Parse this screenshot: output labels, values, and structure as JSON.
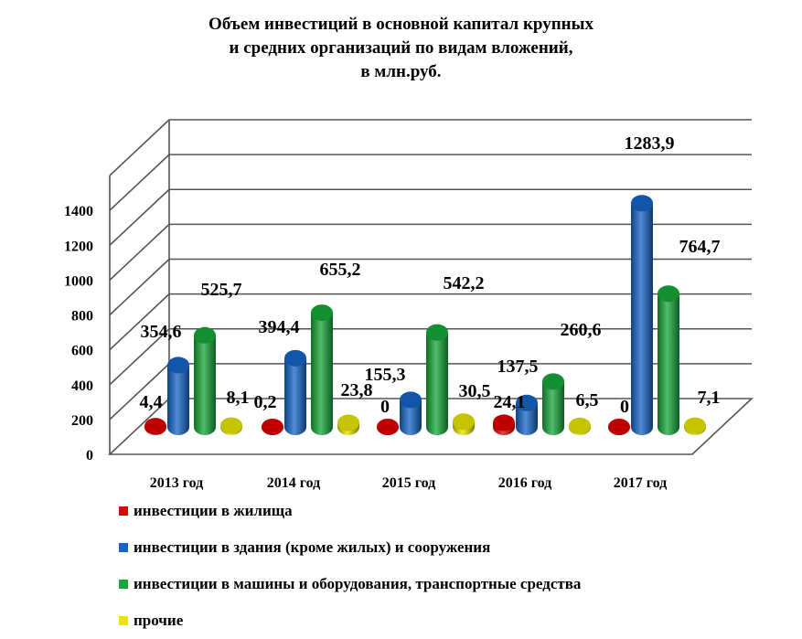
{
  "title_lines": [
    "Объем инвестиций в основной капитал крупных",
    "и средних организаций по видам вложений,",
    "в млн.руб."
  ],
  "colors": {
    "housing": "#e00000",
    "buildings": "#1565c8",
    "machinery": "#16a83a",
    "other": "#e6e600"
  },
  "chart_data": {
    "type": "bar",
    "title": "Объем инвестиций в основной капитал крупных и средних организаций по видам вложений, в млн.руб.",
    "categories": [
      "2013 год",
      "2014 год",
      "2015 год",
      "2016 год",
      "2017 год"
    ],
    "series": [
      {
        "name": "инвестиции в жилища",
        "values": [
          4.4,
          0.2,
          0,
          24.1,
          0
        ],
        "labels": [
          "4,4",
          "0,2",
          "0",
          "24,1",
          "0"
        ]
      },
      {
        "name": "инвестиции в здания (кроме жилых) и сооружения",
        "values": [
          354.6,
          394.4,
          155.3,
          137.5,
          1283.9
        ],
        "labels": [
          "354,6",
          "394,4",
          "155,3",
          "137,5",
          "1283,9"
        ]
      },
      {
        "name": "инвестиции в машины и оборудования, транспортные средства",
        "values": [
          525.7,
          655.2,
          542.2,
          260.6,
          764.7
        ],
        "labels": [
          "525,7",
          "655,2",
          "542,2",
          "260,6",
          "764,7"
        ]
      },
      {
        "name": "прочие",
        "values": [
          8.1,
          23.8,
          30.5,
          6.5,
          7.1
        ],
        "labels": [
          "8,1",
          "23,8",
          "30,5",
          "6,5",
          "7,1"
        ]
      }
    ],
    "yticks": [
      0,
      200,
      400,
      600,
      800,
      1000,
      1200,
      1400
    ],
    "ylim": [
      0,
      1600
    ],
    "grid": true,
    "three_d": true,
    "legend_position": "bottom"
  }
}
